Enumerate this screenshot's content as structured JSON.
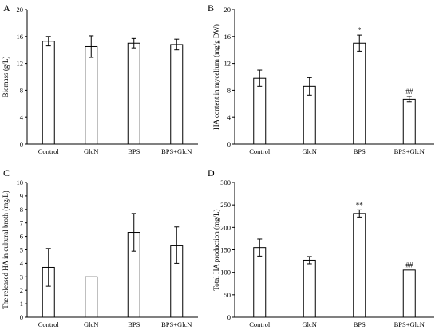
{
  "chart_data": [
    {
      "type": "bar",
      "panel": "A",
      "categories": [
        "Control",
        "GlcN",
        "BPS",
        "BPS+GlcN"
      ],
      "values": [
        15.3,
        14.5,
        15.0,
        14.8
      ],
      "errors": [
        0.7,
        1.6,
        0.7,
        0.8
      ],
      "annotations": [
        "",
        "",
        "",
        ""
      ],
      "ylabel": "Biomass (g/L)",
      "ylim": [
        0,
        20
      ],
      "yticks": [
        0,
        4,
        8,
        12,
        16,
        20
      ],
      "grid": false
    },
    {
      "type": "bar",
      "panel": "B",
      "categories": [
        "Control",
        "GlcN",
        "BPS",
        "BPS+GlcN"
      ],
      "values": [
        9.8,
        8.6,
        15.0,
        6.7
      ],
      "errors": [
        1.2,
        1.3,
        1.2,
        0.4
      ],
      "annotations": [
        "",
        "",
        "*",
        "##"
      ],
      "ylabel": "HA content in mycelium (mg/g DW)",
      "ylim": [
        0,
        20
      ],
      "yticks": [
        0,
        4,
        8,
        12,
        16,
        20
      ],
      "grid": false
    },
    {
      "type": "bar",
      "panel": "C",
      "categories": [
        "Control",
        "GlcN",
        "BPS",
        "BPS+GlcN"
      ],
      "values": [
        3.7,
        3.0,
        6.3,
        5.35
      ],
      "errors": [
        1.4,
        0.02,
        1.4,
        1.35
      ],
      "annotations": [
        "",
        "",
        "",
        ""
      ],
      "ylabel": "The released HA in cultural broth (mg/L)",
      "ylim": [
        0,
        10
      ],
      "yticks": [
        0,
        1,
        2,
        3,
        4,
        5,
        6,
        7,
        8,
        9,
        10
      ],
      "grid": false
    },
    {
      "type": "bar",
      "panel": "D",
      "categories": [
        "Control",
        "GlcN",
        "BPS",
        "BPS+GlcN"
      ],
      "values": [
        155,
        127,
        231,
        105
      ],
      "errors": [
        19,
        8,
        8,
        1
      ],
      "annotations": [
        "",
        "",
        "**",
        "##"
      ],
      "ylabel": "Total HA production (mg/L)",
      "ylim": [
        0,
        300
      ],
      "yticks": [
        0,
        50,
        100,
        150,
        200,
        250,
        300
      ],
      "grid": false
    }
  ],
  "colors": {
    "bar_fill": "#ffffff",
    "bar_stroke": "#000000",
    "axis": "#000000"
  }
}
